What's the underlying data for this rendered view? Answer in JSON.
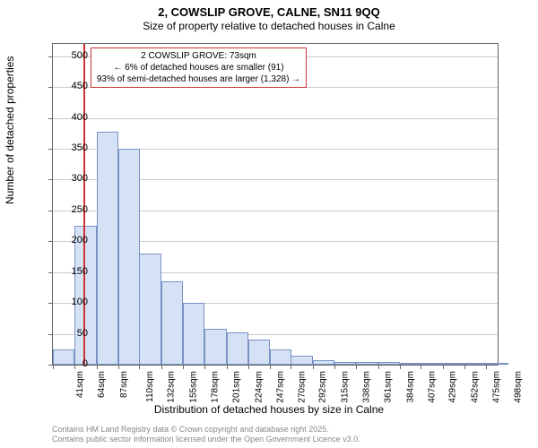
{
  "title_main": "2, COWSLIP GROVE, CALNE, SN11 9QQ",
  "subtitle": "Size of property relative to detached houses in Calne",
  "ylabel": "Number of detached properties",
  "xlabel": "Distribution of detached houses by size in Calne",
  "chart": {
    "type": "histogram",
    "background_color": "#ffffff",
    "grid_color": "#cccccc",
    "border_color": "#666666",
    "bar_fill": "#d5e2f6",
    "bar_stroke": "#7a91c6",
    "marker_color": "#cc3333",
    "xlim": [
      41,
      510
    ],
    "ylim": [
      0,
      520
    ],
    "yticks": [
      0,
      50,
      100,
      150,
      200,
      250,
      300,
      350,
      400,
      450,
      500
    ],
    "xticks": [
      41,
      64,
      87,
      110,
      132,
      155,
      178,
      201,
      224,
      247,
      270,
      292,
      315,
      338,
      361,
      384,
      407,
      429,
      452,
      475,
      498
    ],
    "xtick_labels": [
      "41sqm",
      "64sqm",
      "87sqm",
      "110sqm",
      "132sqm",
      "155sqm",
      "178sqm",
      "201sqm",
      "224sqm",
      "247sqm",
      "270sqm",
      "292sqm",
      "315sqm",
      "338sqm",
      "361sqm",
      "384sqm",
      "407sqm",
      "429sqm",
      "452sqm",
      "475sqm",
      "498sqm"
    ],
    "bin_starts": [
      41,
      64,
      87,
      110,
      132,
      155,
      178,
      201,
      224,
      247,
      270,
      292,
      315,
      338,
      361,
      384,
      407,
      429,
      452,
      475,
      498
    ],
    "bin_width": 23,
    "values": [
      25,
      225,
      377,
      350,
      180,
      135,
      100,
      58,
      53,
      40,
      25,
      15,
      8,
      5,
      4,
      4,
      3,
      3,
      1,
      3,
      1
    ],
    "marker_x": 73
  },
  "info": {
    "line1": "2 COWSLIP GROVE: 73sqm",
    "line2": "← 6% of detached houses are smaller (91)",
    "line3": "93% of semi-detached houses are larger (1,328) →"
  },
  "footer": {
    "line1": "Contains HM Land Registry data © Crown copyright and database right 2025.",
    "line2": "Contains public sector information licensed under the Open Government Licence v3.0."
  }
}
